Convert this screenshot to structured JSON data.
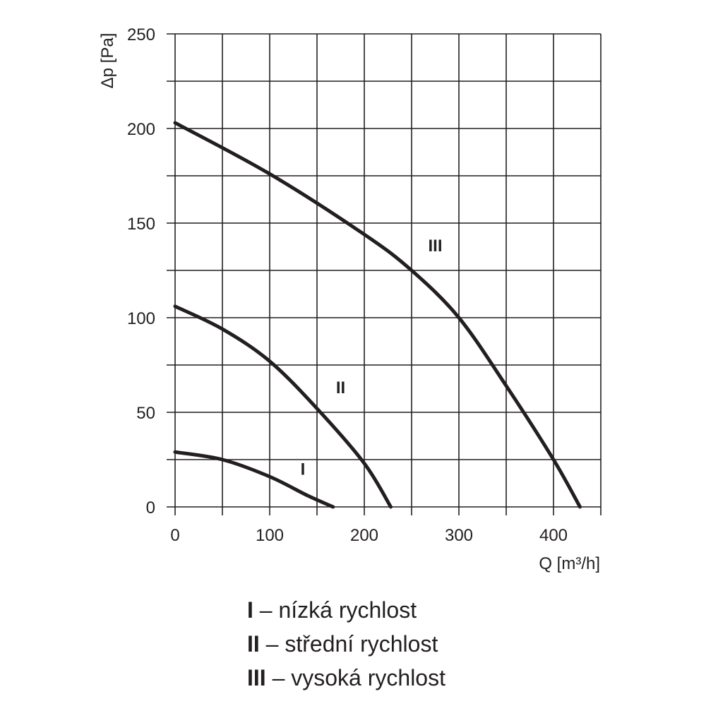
{
  "chart_data": {
    "type": "line",
    "xlabel": "Q [m³/h]",
    "ylabel": "Δp [Pa]",
    "xlim": [
      0,
      450
    ],
    "ylim": [
      0,
      250
    ],
    "x_ticks": [
      0,
      100,
      200,
      300,
      400
    ],
    "y_ticks": [
      0,
      50,
      100,
      150,
      200,
      250
    ],
    "grid": true,
    "legend_position": "bottom",
    "series": [
      {
        "name": "I",
        "points": [
          [
            0,
            29
          ],
          [
            50,
            25
          ],
          [
            100,
            16
          ],
          [
            140,
            6
          ],
          [
            167,
            0
          ]
        ],
        "label_at": [
          135,
          17
        ]
      },
      {
        "name": "II",
        "points": [
          [
            0,
            106
          ],
          [
            50,
            94
          ],
          [
            100,
            77
          ],
          [
            150,
            52
          ],
          [
            200,
            23
          ],
          [
            228,
            0
          ]
        ],
        "label_at": [
          175,
          60
        ]
      },
      {
        "name": "III",
        "points": [
          [
            0,
            203
          ],
          [
            100,
            176
          ],
          [
            200,
            144
          ],
          [
            250,
            125
          ],
          [
            300,
            100
          ],
          [
            350,
            64
          ],
          [
            400,
            25
          ],
          [
            428,
            0
          ]
        ],
        "label_at": [
          275,
          135
        ]
      }
    ]
  },
  "legend": [
    {
      "key": "I",
      "text": " – nízká rychlost"
    },
    {
      "key": "II",
      "text": " – střední rychlost"
    },
    {
      "key": "III",
      "text": " – vysoká rychlost"
    }
  ]
}
